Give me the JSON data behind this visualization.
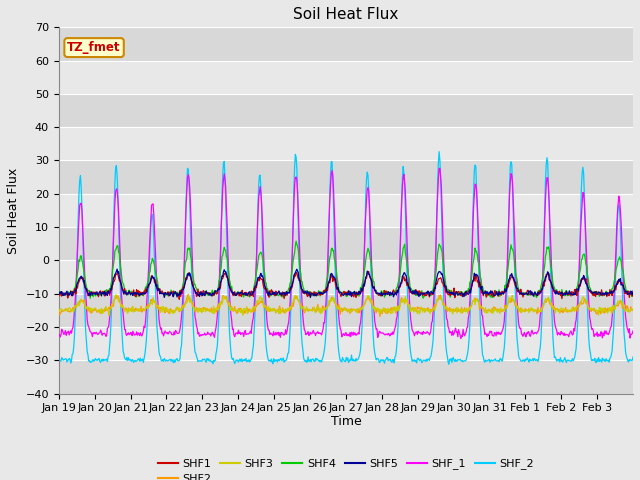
{
  "title": "Soil Heat Flux",
  "ylabel": "Soil Heat Flux",
  "xlabel": "Time",
  "ylim": [
    -40,
    70
  ],
  "series_colors": {
    "SHF1": "#cc0000",
    "SHF2": "#ff9900",
    "SHF3": "#cccc00",
    "SHF4": "#00cc00",
    "SHF5": "#000099",
    "SHF_1": "#ff00ff",
    "SHF_2": "#00ccff"
  },
  "annotation_box": "TZ_fmet",
  "annotation_color": "#cc0000",
  "annotation_bg": "#ffffcc",
  "annotation_border": "#cc8800",
  "background_color": "#e8e8e8",
  "plot_bg": "#e8e8e8",
  "yticks": [
    -40,
    -30,
    -20,
    -10,
    0,
    10,
    20,
    30,
    40,
    50,
    60,
    70
  ],
  "grid_color": "#ffffff",
  "title_fontsize": 11,
  "axis_fontsize": 8,
  "linewidth": 1.0
}
